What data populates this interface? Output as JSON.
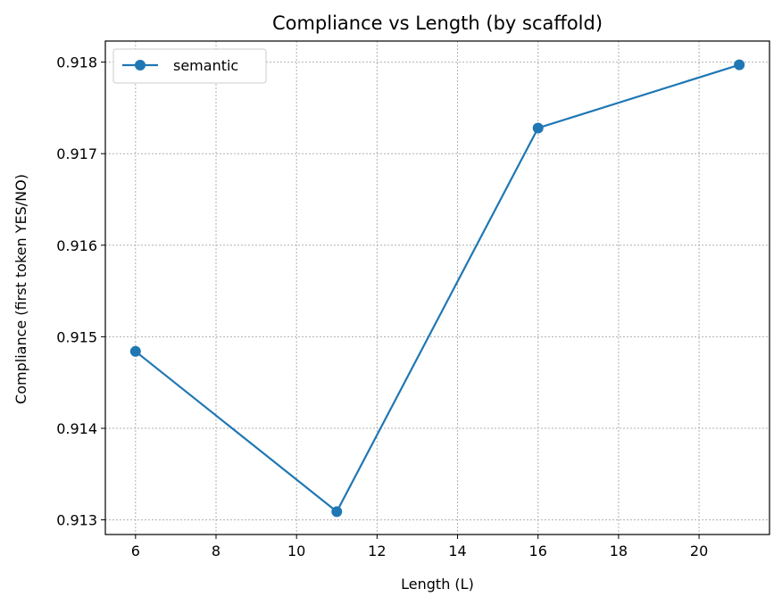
{
  "chart_data": {
    "type": "line",
    "title": "Compliance vs Length (by scaffold)",
    "xlabel": "Length (L)",
    "ylabel": "Compliance (first token YES/NO)",
    "xlim": [
      5.25,
      21.75
    ],
    "ylim": [
      0.91284,
      0.91823
    ],
    "xticks": [
      6,
      8,
      10,
      12,
      14,
      16,
      18,
      20
    ],
    "xtick_labels": [
      "6",
      "8",
      "10",
      "12",
      "14",
      "16",
      "18",
      "20"
    ],
    "yticks": [
      0.913,
      0.914,
      0.915,
      0.916,
      0.917,
      0.918
    ],
    "ytick_labels": [
      "0.913",
      "0.914",
      "0.915",
      "0.916",
      "0.917",
      "0.918"
    ],
    "grid": true,
    "legend_position": "top-left",
    "x": [
      6,
      11,
      16,
      21
    ],
    "series": [
      {
        "name": "semantic",
        "values": [
          0.91484,
          0.91309,
          0.91728,
          0.91797
        ],
        "color": "#1f77b4"
      }
    ]
  }
}
